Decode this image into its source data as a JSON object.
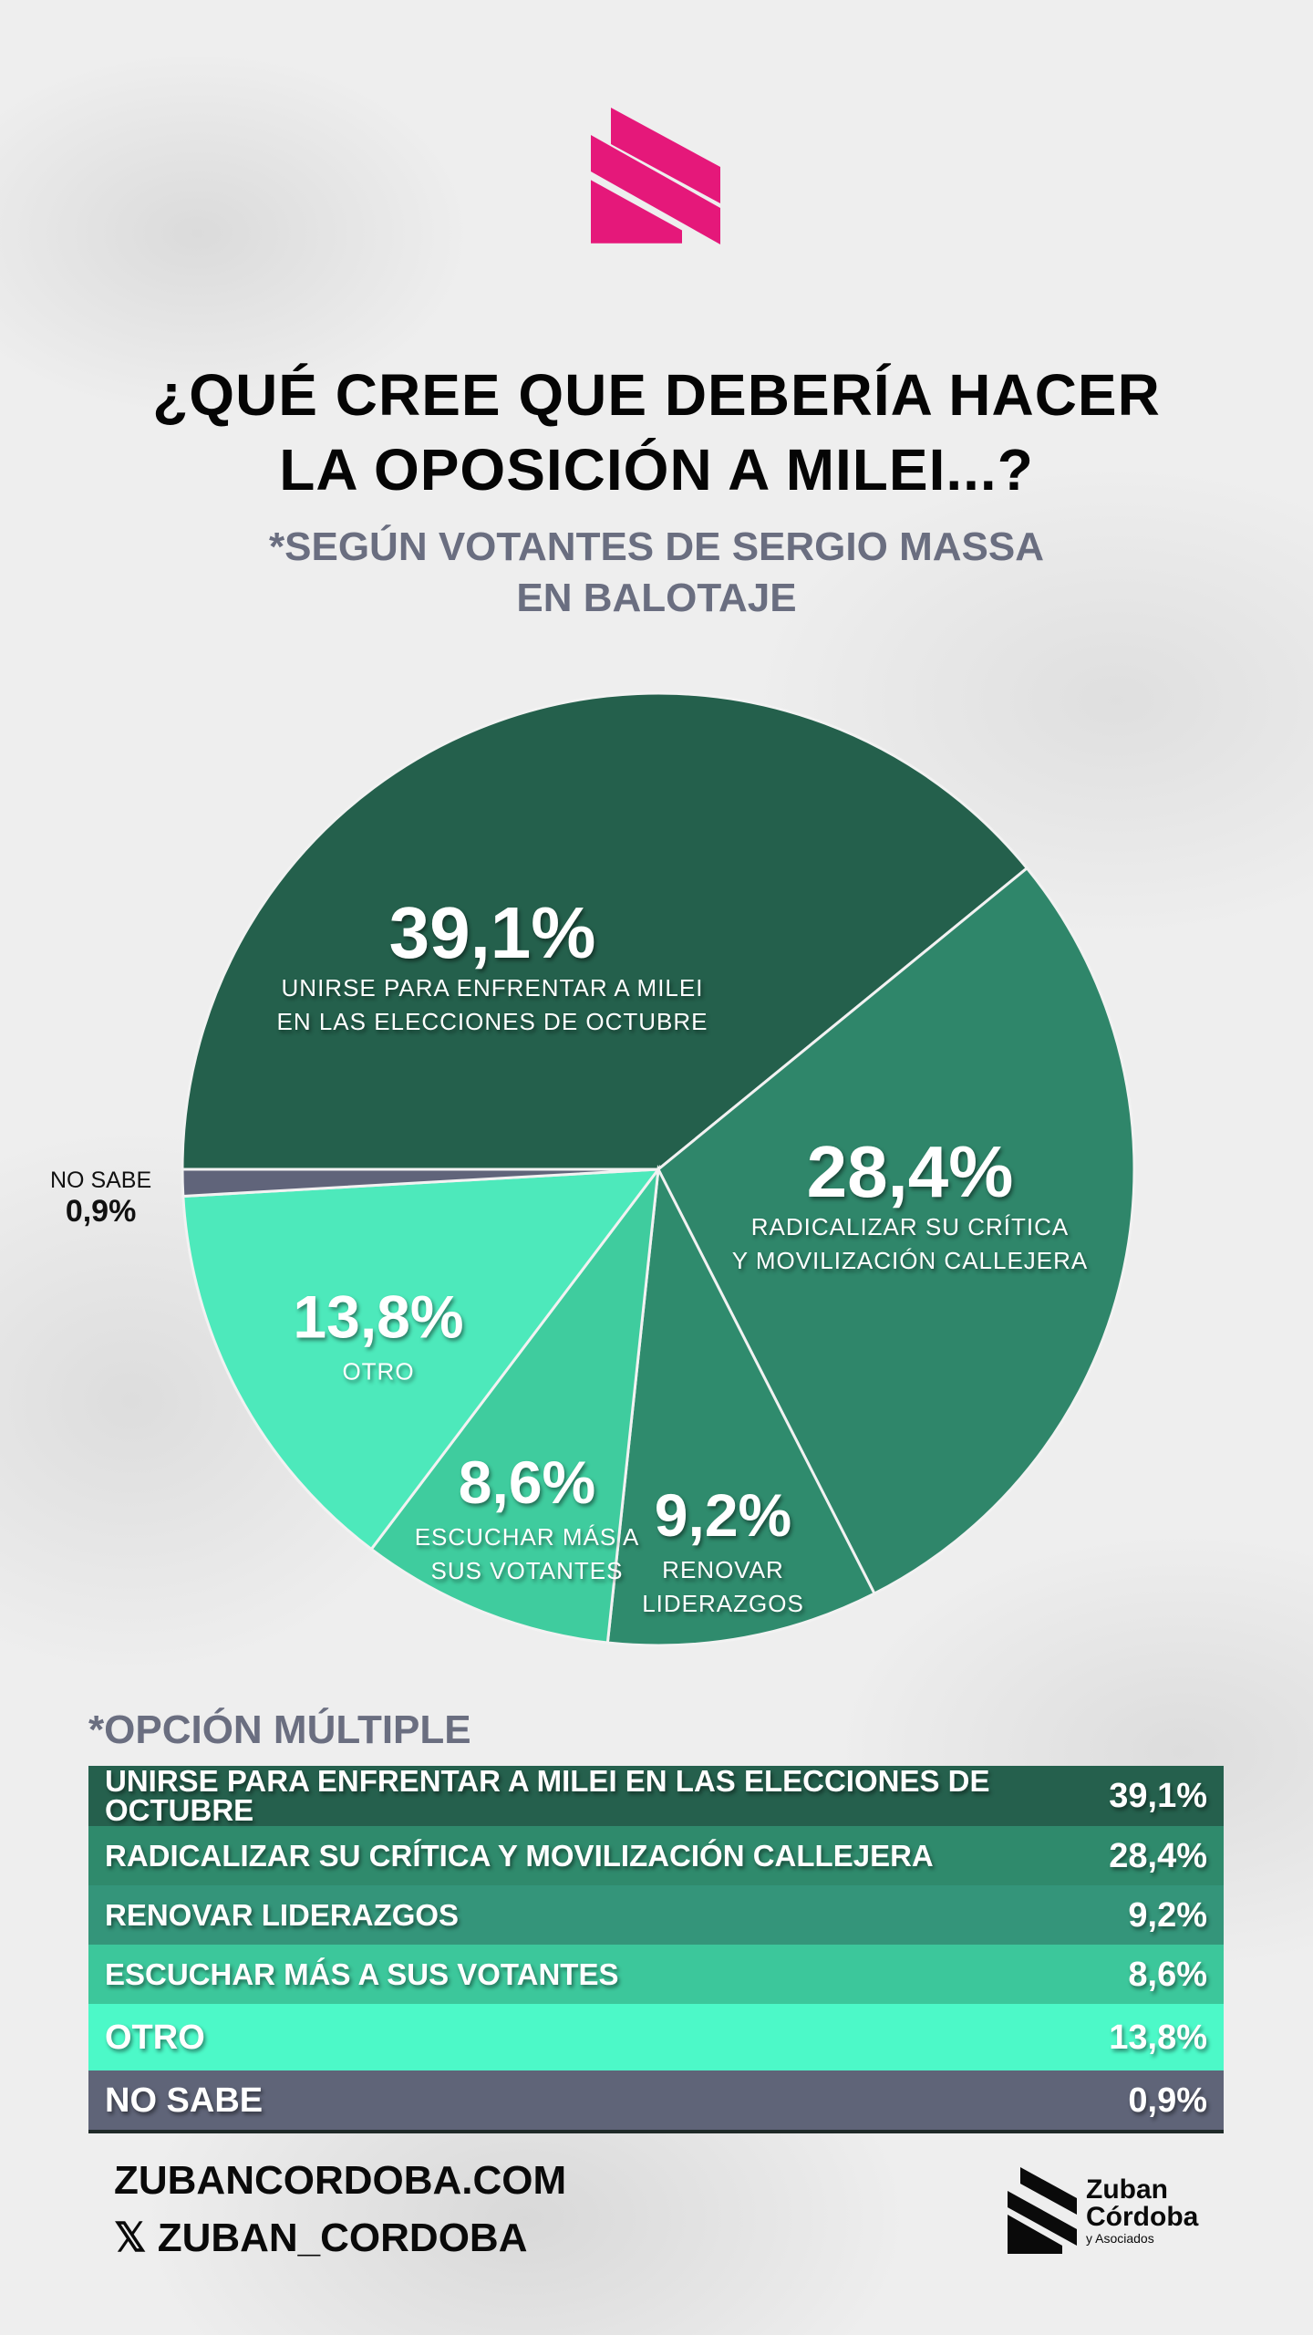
{
  "header": {
    "logo": "zuban-cordoba-mark",
    "title_lines": [
      "¿QUÉ CREE QUE DEBERÍA HACER",
      "LA OPOSICIÓN A MILEI...?"
    ],
    "subtitle_lines": [
      "*SEGÚN VOTANTES DE SERGIO MASSA",
      "EN BALOTAJE"
    ]
  },
  "chart_data": {
    "type": "pie",
    "title": "¿QUÉ CREE QUE DEBERÍA HACER LA OPOSICIÓN A MILEI...?",
    "slices": [
      {
        "label_lines": [
          "UNIRSE PARA ENFRENTAR A MILEI",
          "EN LAS ELECCIONES DE OCTUBRE"
        ],
        "value": 39.1,
        "value_label": "39,1%",
        "color": "#24604c"
      },
      {
        "label_lines": [
          "RADICALIZAR SU CRÍTICA",
          "Y MOVILIZACIÓN CALLEJERA"
        ],
        "value": 28.4,
        "value_label": "28,4%",
        "color": "#2f866a"
      },
      {
        "label_lines": [
          "RENOVAR",
          "LIDERAZGOS"
        ],
        "value": 9.2,
        "value_label": "9,2%",
        "color": "#2f8b6d"
      },
      {
        "label_lines": [
          "ESCUCHAR MÁS A",
          "SUS VOTANTES"
        ],
        "value": 8.6,
        "value_label": "8,6%",
        "color": "#3fcc9e"
      },
      {
        "label_lines": [
          "OTRO"
        ],
        "value": 13.8,
        "value_label": "13,8%",
        "color": "#4de9bb"
      },
      {
        "label_lines": [
          "NO SABE"
        ],
        "value": 0.9,
        "value_label": "0,9%",
        "color": "#60647a"
      }
    ]
  },
  "table": {
    "note": "*OPCIÓN MÚLTIPLE",
    "rows": [
      {
        "label": "UNIRSE PARA ENFRENTAR A MILEI EN LAS  ELECCIONES DE OCTUBRE",
        "value": "39,1%",
        "color": "#25604d"
      },
      {
        "label": "RADICALIZAR SU CRÍTICA Y MOVILIZACIÓN CALLEJERA",
        "value": "28,4%",
        "color": "#2f8a6c"
      },
      {
        "label": "RENOVAR LIDERAZGOS",
        "value": "9,2%",
        "color": "#34957a"
      },
      {
        "label": "ESCUCHAR MÁS A SUS VOTANTES",
        "value": "8,6%",
        "color": "#3cc79b"
      },
      {
        "label": "OTRO",
        "value": "13,8%",
        "color": "#4cf9c8"
      },
      {
        "label": "NO SABE",
        "value": "0,9%",
        "color": "#5f6478"
      }
    ]
  },
  "footer": {
    "website": "ZUBANCORDOBA.COM",
    "x_icon": "𝕏",
    "handle": "ZUBAN_CORDOBA",
    "brand_lines": [
      "Zuban",
      "Córdoba",
      "y Asociados"
    ]
  }
}
